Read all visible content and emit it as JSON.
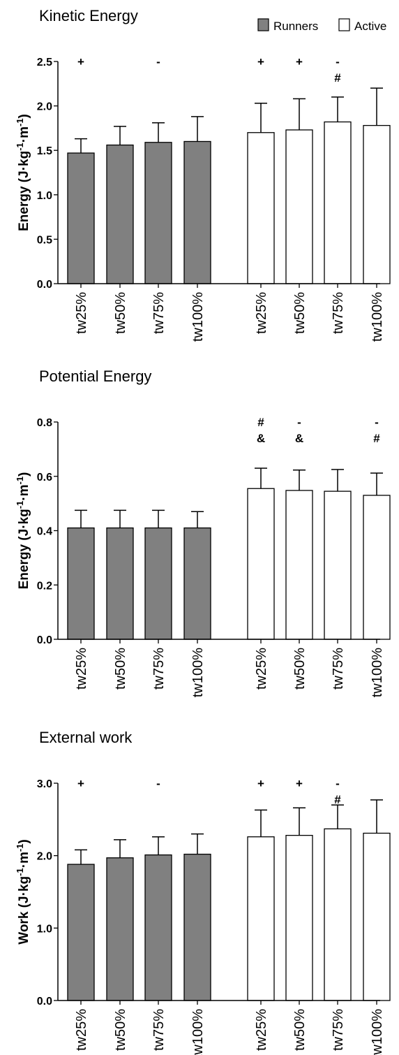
{
  "legend": [
    {
      "label": "Runners",
      "color": "#808080"
    },
    {
      "label": "Active",
      "color": "#ffffff"
    }
  ],
  "chart_data": [
    {
      "type": "bar",
      "title": "Kinetic Energy",
      "ylabel_main": "Energy (J·kg",
      "ylabel_units": "·m",
      "ylabel_sup": "-1",
      "ylabel_close": ")",
      "ylim": [
        0,
        2.5
      ],
      "yticks": [
        "0.0",
        "0.5",
        "1.0",
        "1.5",
        "2.0",
        "2.5"
      ],
      "categories": [
        "tw25%",
        "tw50%",
        "tw75%",
        "tw100%"
      ],
      "series": [
        {
          "name": "Runners",
          "color": "#808080",
          "values": [
            1.47,
            1.56,
            1.59,
            1.6
          ],
          "errors": [
            0.16,
            0.21,
            0.22,
            0.28
          ],
          "annotations": [
            [
              "+"
            ],
            [],
            [
              "-"
            ],
            []
          ]
        },
        {
          "name": "Active",
          "color": "#ffffff",
          "values": [
            1.7,
            1.73,
            1.82,
            1.78
          ],
          "errors": [
            0.33,
            0.35,
            0.28,
            0.42
          ],
          "annotations": [
            [
              "+"
            ],
            [
              "+"
            ],
            [
              "-",
              "#"
            ],
            []
          ]
        }
      ]
    },
    {
      "type": "bar",
      "title": "Potential Energy",
      "ylabel_main": "Energy (J·kg",
      "ylabel_units": "·m",
      "ylabel_sup": "-1",
      "ylabel_close": ")",
      "ylim": [
        0,
        0.8
      ],
      "yticks": [
        "0.0",
        "0.2",
        "0.4",
        "0.6",
        "0.8"
      ],
      "categories": [
        "tw25%",
        "tw50%",
        "tw75%",
        "tw100%"
      ],
      "series": [
        {
          "name": "Runners",
          "color": "#808080",
          "values": [
            0.41,
            0.41,
            0.41,
            0.41
          ],
          "errors": [
            0.065,
            0.065,
            0.065,
            0.06
          ],
          "annotations": [
            [],
            [],
            [],
            []
          ]
        },
        {
          "name": "Active",
          "color": "#ffffff",
          "values": [
            0.555,
            0.548,
            0.545,
            0.53
          ],
          "errors": [
            0.075,
            0.075,
            0.08,
            0.082
          ],
          "annotations": [
            [
              "#",
              "&"
            ],
            [
              "-",
              "&"
            ],
            [],
            [
              "-",
              "#"
            ]
          ]
        }
      ]
    },
    {
      "type": "bar",
      "title": "External work",
      "ylabel_main": "Work (J·kg",
      "ylabel_units": "·m",
      "ylabel_sup": "-1",
      "ylabel_close": ")",
      "ylim": [
        0,
        3.0
      ],
      "yticks": [
        "0.0",
        "1.0",
        "2.0",
        "3.0"
      ],
      "categories": [
        "tw25%",
        "tw50%",
        "tw75%",
        "tw100%"
      ],
      "series": [
        {
          "name": "Runners",
          "color": "#808080",
          "values": [
            1.88,
            1.97,
            2.01,
            2.02
          ],
          "errors": [
            0.2,
            0.25,
            0.25,
            0.28
          ],
          "annotations": [
            [
              "+"
            ],
            [],
            [
              "-"
            ],
            []
          ]
        },
        {
          "name": "Active",
          "color": "#ffffff",
          "values": [
            2.26,
            2.28,
            2.37,
            2.31
          ],
          "errors": [
            0.37,
            0.38,
            0.33,
            0.46
          ],
          "annotations": [
            [
              "+"
            ],
            [
              "+"
            ],
            [
              "-",
              "#"
            ],
            []
          ]
        }
      ]
    }
  ]
}
